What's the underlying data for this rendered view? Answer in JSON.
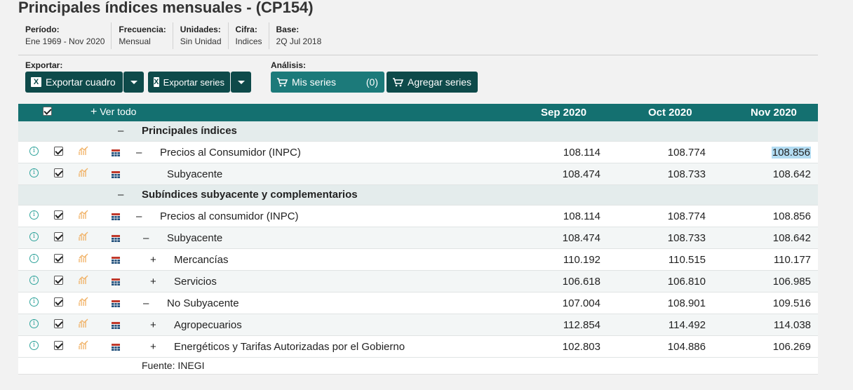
{
  "title": "Principales índices mensuales - (CP154)",
  "meta": [
    {
      "label": "Período:",
      "value": "Ene 1969 - Nov 2020"
    },
    {
      "label": "Frecuencia:",
      "value": "Mensual"
    },
    {
      "label": "Unidades:",
      "value": "Sin Unidad"
    },
    {
      "label": "Cifra:",
      "value": "Indices"
    },
    {
      "label": "Base:",
      "value": "2Q Jul 2018"
    }
  ],
  "exportar": {
    "label": "Exportar:",
    "cuadro": "Exportar cuadro",
    "series": "Exportar series"
  },
  "analisis": {
    "label": "Análisis:",
    "mis_series": "Mis series",
    "count": "(0)",
    "agregar": "Agregar series"
  },
  "table": {
    "ver_todo": "Ver todo",
    "columns": [
      "Sep 2020",
      "Oct 2020",
      "Nov 2020"
    ],
    "sections": [
      {
        "label": "Principales índices",
        "toggle": "–"
      },
      {
        "label": "Subíndices subyacente y complementarios",
        "toggle": "–"
      }
    ],
    "rows": [
      {
        "toggle": "–",
        "label": "Precios al Consumidor (INPC)",
        "values": [
          "108.114",
          "108.774",
          "108.856"
        ]
      },
      {
        "toggle": "",
        "label": "Subyacente",
        "values": [
          "108.474",
          "108.733",
          "108.642"
        ]
      },
      {
        "toggle": "–",
        "label": "Precios al consumidor (INPC)",
        "values": [
          "108.114",
          "108.774",
          "108.856"
        ]
      },
      {
        "toggle": "–",
        "label": "Subyacente",
        "values": [
          "108.474",
          "108.733",
          "108.642"
        ]
      },
      {
        "toggle": "+",
        "label": "Mercancías",
        "values": [
          "110.192",
          "110.515",
          "110.177"
        ]
      },
      {
        "toggle": "+",
        "label": "Servicios",
        "values": [
          "106.618",
          "106.810",
          "106.985"
        ]
      },
      {
        "toggle": "–",
        "label": "No Subyacente",
        "values": [
          "107.004",
          "108.901",
          "109.516"
        ]
      },
      {
        "toggle": "+",
        "label": "Agropecuarios",
        "values": [
          "112.854",
          "114.492",
          "114.038"
        ]
      },
      {
        "toggle": "+",
        "label": "Energéticos y Tarifas Autorizadas por el Gobierno",
        "values": [
          "102.803",
          "104.886",
          "106.269"
        ]
      }
    ],
    "footer": "Fuente: INEGI"
  },
  "colors": {
    "header": "#147070",
    "button": "#0e4a4a",
    "button_light": "#1c7a7a",
    "highlight": "#b3dcf2"
  }
}
